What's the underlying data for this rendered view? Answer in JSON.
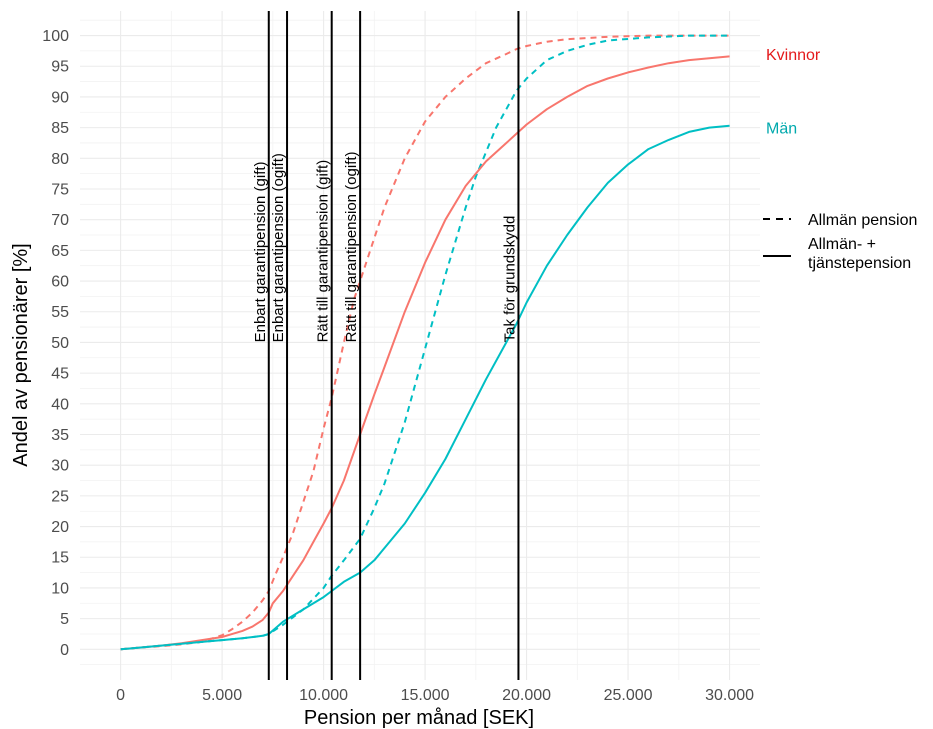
{
  "chart_data": {
    "type": "line",
    "title": "",
    "xlabel": "Pension per månad [SEK]",
    "ylabel": "Andel av pensionärer [%]",
    "xlim": [
      -2000,
      31500
    ],
    "ylim": [
      -5,
      104
    ],
    "x_ticks": [
      0,
      5000,
      10000,
      15000,
      20000,
      25000,
      30000
    ],
    "x_tick_labels": [
      "0",
      "5.000",
      "10.000",
      "15.000",
      "20.000",
      "25.000",
      "30.000"
    ],
    "y_ticks": [
      0,
      5,
      10,
      15,
      20,
      25,
      30,
      35,
      40,
      45,
      50,
      55,
      60,
      65,
      70,
      75,
      80,
      85,
      90,
      95,
      100
    ],
    "y_tick_labels": [
      "0",
      "5",
      "10",
      "15",
      "20",
      "25",
      "30",
      "35",
      "40",
      "45",
      "50",
      "55",
      "60",
      "65",
      "70",
      "75",
      "80",
      "85",
      "90",
      "95",
      "100"
    ],
    "grid": true,
    "colors": {
      "kvinnor": "#F8766D",
      "man": "#00BFC4",
      "kvinnor_label": "#E41A1C",
      "man_label": "#00A9AD"
    },
    "series": [
      {
        "name": "Kvinnor",
        "group": "Kvinnor",
        "linetype": "dashed",
        "x": [
          0,
          1000,
          2000,
          3000,
          4000,
          5000,
          5500,
          6000,
          6500,
          7000,
          7300,
          7600,
          8000,
          8500,
          9000,
          9500,
          10000,
          10400,
          11000,
          11500,
          11800,
          12500,
          13000,
          14000,
          15000,
          16000,
          17000,
          18000,
          19000,
          19500,
          20000,
          21000,
          22000,
          24000,
          26000,
          28000,
          30000
        ],
        "y": [
          0,
          0.3,
          0.5,
          0.8,
          1.2,
          2.3,
          3.3,
          4.5,
          6,
          8,
          9.5,
          12,
          15,
          19,
          24,
          29,
          36,
          41,
          50,
          57,
          60,
          67,
          72,
          80,
          86,
          90,
          93,
          95.5,
          97,
          97.8,
          98.3,
          99,
          99.4,
          99.8,
          100,
          100,
          100
        ]
      },
      {
        "name": "Män",
        "group": "Män",
        "linetype": "dashed",
        "x": [
          0,
          1000,
          2000,
          3000,
          4000,
          5000,
          6000,
          7000,
          7300,
          8000,
          9000,
          10000,
          10400,
          11000,
          11800,
          12500,
          13000,
          14000,
          15000,
          16000,
          17000,
          17500,
          18000,
          18500,
          19000,
          19500,
          20000,
          21000,
          22000,
          23000,
          24000,
          26000,
          28000,
          30000
        ],
        "y": [
          0,
          0.3,
          0.6,
          0.9,
          1.2,
          1.5,
          1.8,
          2.2,
          2.5,
          4,
          6.5,
          10,
          12,
          14.5,
          18,
          23,
          27,
          37,
          49,
          61,
          72,
          77,
          81,
          85,
          88,
          91,
          93,
          96,
          97.5,
          98.5,
          99.2,
          99.7,
          100,
          100
        ]
      },
      {
        "name": "Kvinnor",
        "group": "Kvinnor",
        "linetype": "solid",
        "x": [
          0,
          1000,
          2000,
          3000,
          4000,
          5000,
          6000,
          6500,
          7000,
          7300,
          7500,
          8000,
          8500,
          9000,
          9500,
          10000,
          10400,
          11000,
          11800,
          12500,
          13000,
          14000,
          15000,
          16000,
          17000,
          18000,
          19000,
          19500,
          20000,
          21000,
          22000,
          23000,
          24000,
          25000,
          26000,
          27000,
          28000,
          29000,
          30000
        ],
        "y": [
          0,
          0.3,
          0.6,
          1,
          1.5,
          2,
          3,
          3.7,
          4.8,
          6,
          7.5,
          9.5,
          12,
          14.5,
          17.5,
          20.5,
          23,
          27.5,
          35,
          41.5,
          46,
          55,
          63,
          70,
          75.5,
          79.5,
          82.5,
          84,
          85.5,
          88,
          90,
          91.8,
          93,
          94,
          94.8,
          95.5,
          96,
          96.3,
          96.6
        ]
      },
      {
        "name": "Män",
        "group": "Män",
        "linetype": "solid",
        "x": [
          0,
          1000,
          2000,
          3000,
          4000,
          5000,
          6000,
          7000,
          7300,
          8000,
          9000,
          10000,
          10400,
          11000,
          11800,
          12500,
          13000,
          14000,
          15000,
          16000,
          17000,
          18000,
          19000,
          19500,
          20000,
          21000,
          22000,
          23000,
          24000,
          25000,
          26000,
          27000,
          28000,
          29000,
          30000
        ],
        "y": [
          0,
          0.3,
          0.6,
          0.9,
          1.2,
          1.5,
          1.8,
          2.2,
          2.5,
          4.5,
          6.5,
          8.5,
          9.5,
          11,
          12.5,
          14.5,
          16.5,
          20.5,
          25.5,
          31,
          37.5,
          44,
          50,
          53,
          56.5,
          62.5,
          67.5,
          72,
          76,
          79,
          81.5,
          83,
          84.3,
          85,
          85.3
        ]
      }
    ],
    "series_labels": [
      {
        "text": "Kvinnor",
        "group": "Kvinnor",
        "y": 97
      },
      {
        "text": "Män",
        "group": "Män",
        "y": 85
      }
    ],
    "vertical_lines": [
      {
        "x": 7300,
        "label": "Enbart garantipension (gift)"
      },
      {
        "x": 8200,
        "label": "Enbart garantipension (ogift)"
      },
      {
        "x": 10400,
        "label": "Rätt till garantipension (gift)"
      },
      {
        "x": 11800,
        "label": "Rätt till garantipension (ogift)"
      },
      {
        "x": 19600,
        "label": "Tak för grundskydd"
      }
    ],
    "legend": {
      "placement": "right",
      "items": [
        {
          "label": "Allmän pension",
          "linetype": "dashed"
        },
        {
          "label": "Allmän- + tjänstepension",
          "linetype": "solid"
        }
      ]
    }
  }
}
